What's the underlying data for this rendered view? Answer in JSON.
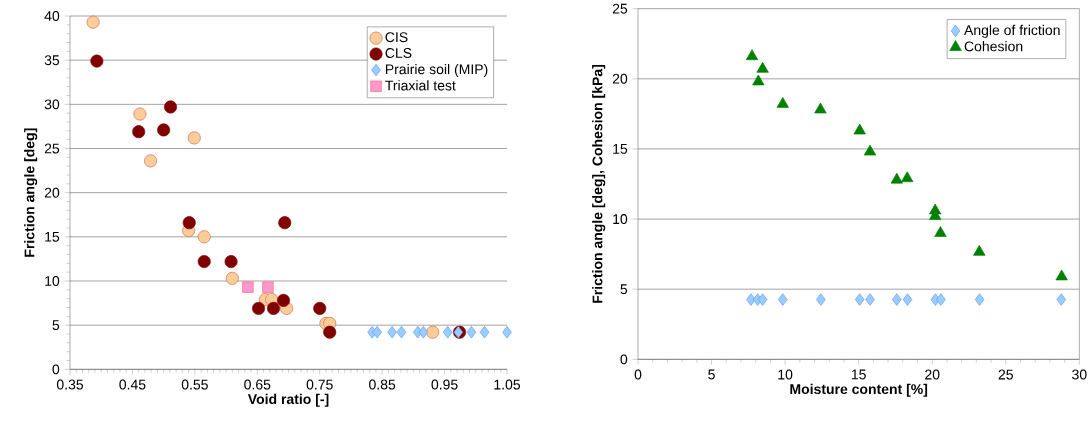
{
  "chart_data": [
    {
      "type": "scatter",
      "xlabel": "Void ratio [-]",
      "ylabel": "Friction angle [deg]",
      "xlim": [
        0.35,
        1.05
      ],
      "ylim": [
        0,
        40
      ],
      "xticks": [
        0.35,
        0.45,
        0.55,
        0.65,
        0.75,
        0.85,
        0.95,
        1.05
      ],
      "yticks": [
        0,
        5,
        10,
        15,
        20,
        25,
        30,
        35,
        40
      ],
      "grid": "y",
      "legend": "top right",
      "series": [
        {
          "name": "CIS",
          "color": "#ffcc99",
          "marker": "circle",
          "x": [
            0.387,
            0.462,
            0.479,
            0.549,
            0.54,
            0.565,
            0.61,
            0.663,
            0.673,
            0.697,
            0.76,
            0.766,
            0.931
          ],
          "values": [
            39.3,
            28.9,
            23.6,
            26.2,
            15.7,
            15.0,
            10.3,
            7.9,
            7.9,
            6.9,
            5.2,
            5.2,
            4.2
          ]
        },
        {
          "name": "CLS",
          "color": "#800000",
          "marker": "circle",
          "x": [
            0.393,
            0.46,
            0.5,
            0.511,
            0.541,
            0.694,
            0.565,
            0.608,
            0.692,
            0.652,
            0.676,
            0.75,
            0.766,
            0.843,
            0.974
          ],
          "values": [
            34.9,
            26.9,
            27.1,
            29.7,
            16.6,
            16.6,
            12.2,
            12.2,
            7.8,
            6.9,
            6.9,
            6.9,
            4.2,
            null,
            4.2
          ]
        },
        {
          "name": "Prairie soil (MIP)",
          "color": "#99ccff",
          "marker": "diamond",
          "x": [
            0.834,
            0.842,
            0.866,
            0.881,
            0.907,
            0.916,
            0.955,
            0.972,
            0.993,
            1.014,
            1.05
          ],
          "values": [
            4.2,
            4.2,
            4.2,
            4.2,
            4.2,
            4.2,
            4.2,
            4.2,
            4.2,
            4.2,
            4.2
          ]
        },
        {
          "name": "Triaxial test",
          "color": "#ff99cc",
          "marker": "square",
          "x": [
            0.635,
            0.667
          ],
          "values": [
            9.3,
            9.3
          ]
        }
      ]
    },
    {
      "type": "scatter",
      "xlabel": "Moisture content [%]",
      "ylabel": "Friction angle [deg], Cohesion [kPa]",
      "xlim": [
        0,
        30
      ],
      "ylim": [
        0,
        25
      ],
      "xticks": [
        0,
        5,
        10,
        15,
        20,
        25,
        30
      ],
      "yticks": [
        0,
        5,
        10,
        15,
        20,
        25
      ],
      "grid": "y",
      "legend": "top right",
      "series": [
        {
          "name": "Angle of friction",
          "color": "#99ccff",
          "marker": "diamond",
          "x": [
            7.68,
            8.13,
            8.47,
            9.84,
            12.43,
            15.07,
            15.77,
            17.59,
            18.32,
            20.09,
            20.22,
            20.59,
            23.22,
            28.77
          ],
          "values": [
            4.26,
            4.26,
            4.26,
            4.26,
            4.26,
            4.26,
            4.26,
            4.26,
            4.26,
            null,
            4.26,
            4.26,
            4.26,
            4.26
          ]
        },
        {
          "name": "Cohesion",
          "color": "#008000",
          "marker": "triangle",
          "x": [
            7.75,
            8.18,
            8.47,
            9.84,
            12.4,
            15.07,
            15.77,
            17.59,
            18.3,
            20.2,
            20.2,
            20.56,
            23.2,
            28.8
          ],
          "values": [
            21.6,
            19.8,
            20.7,
            18.2,
            17.8,
            16.3,
            14.8,
            12.8,
            12.9,
            10.6,
            10.2,
            9.0,
            7.65,
            5.9
          ]
        }
      ]
    }
  ]
}
